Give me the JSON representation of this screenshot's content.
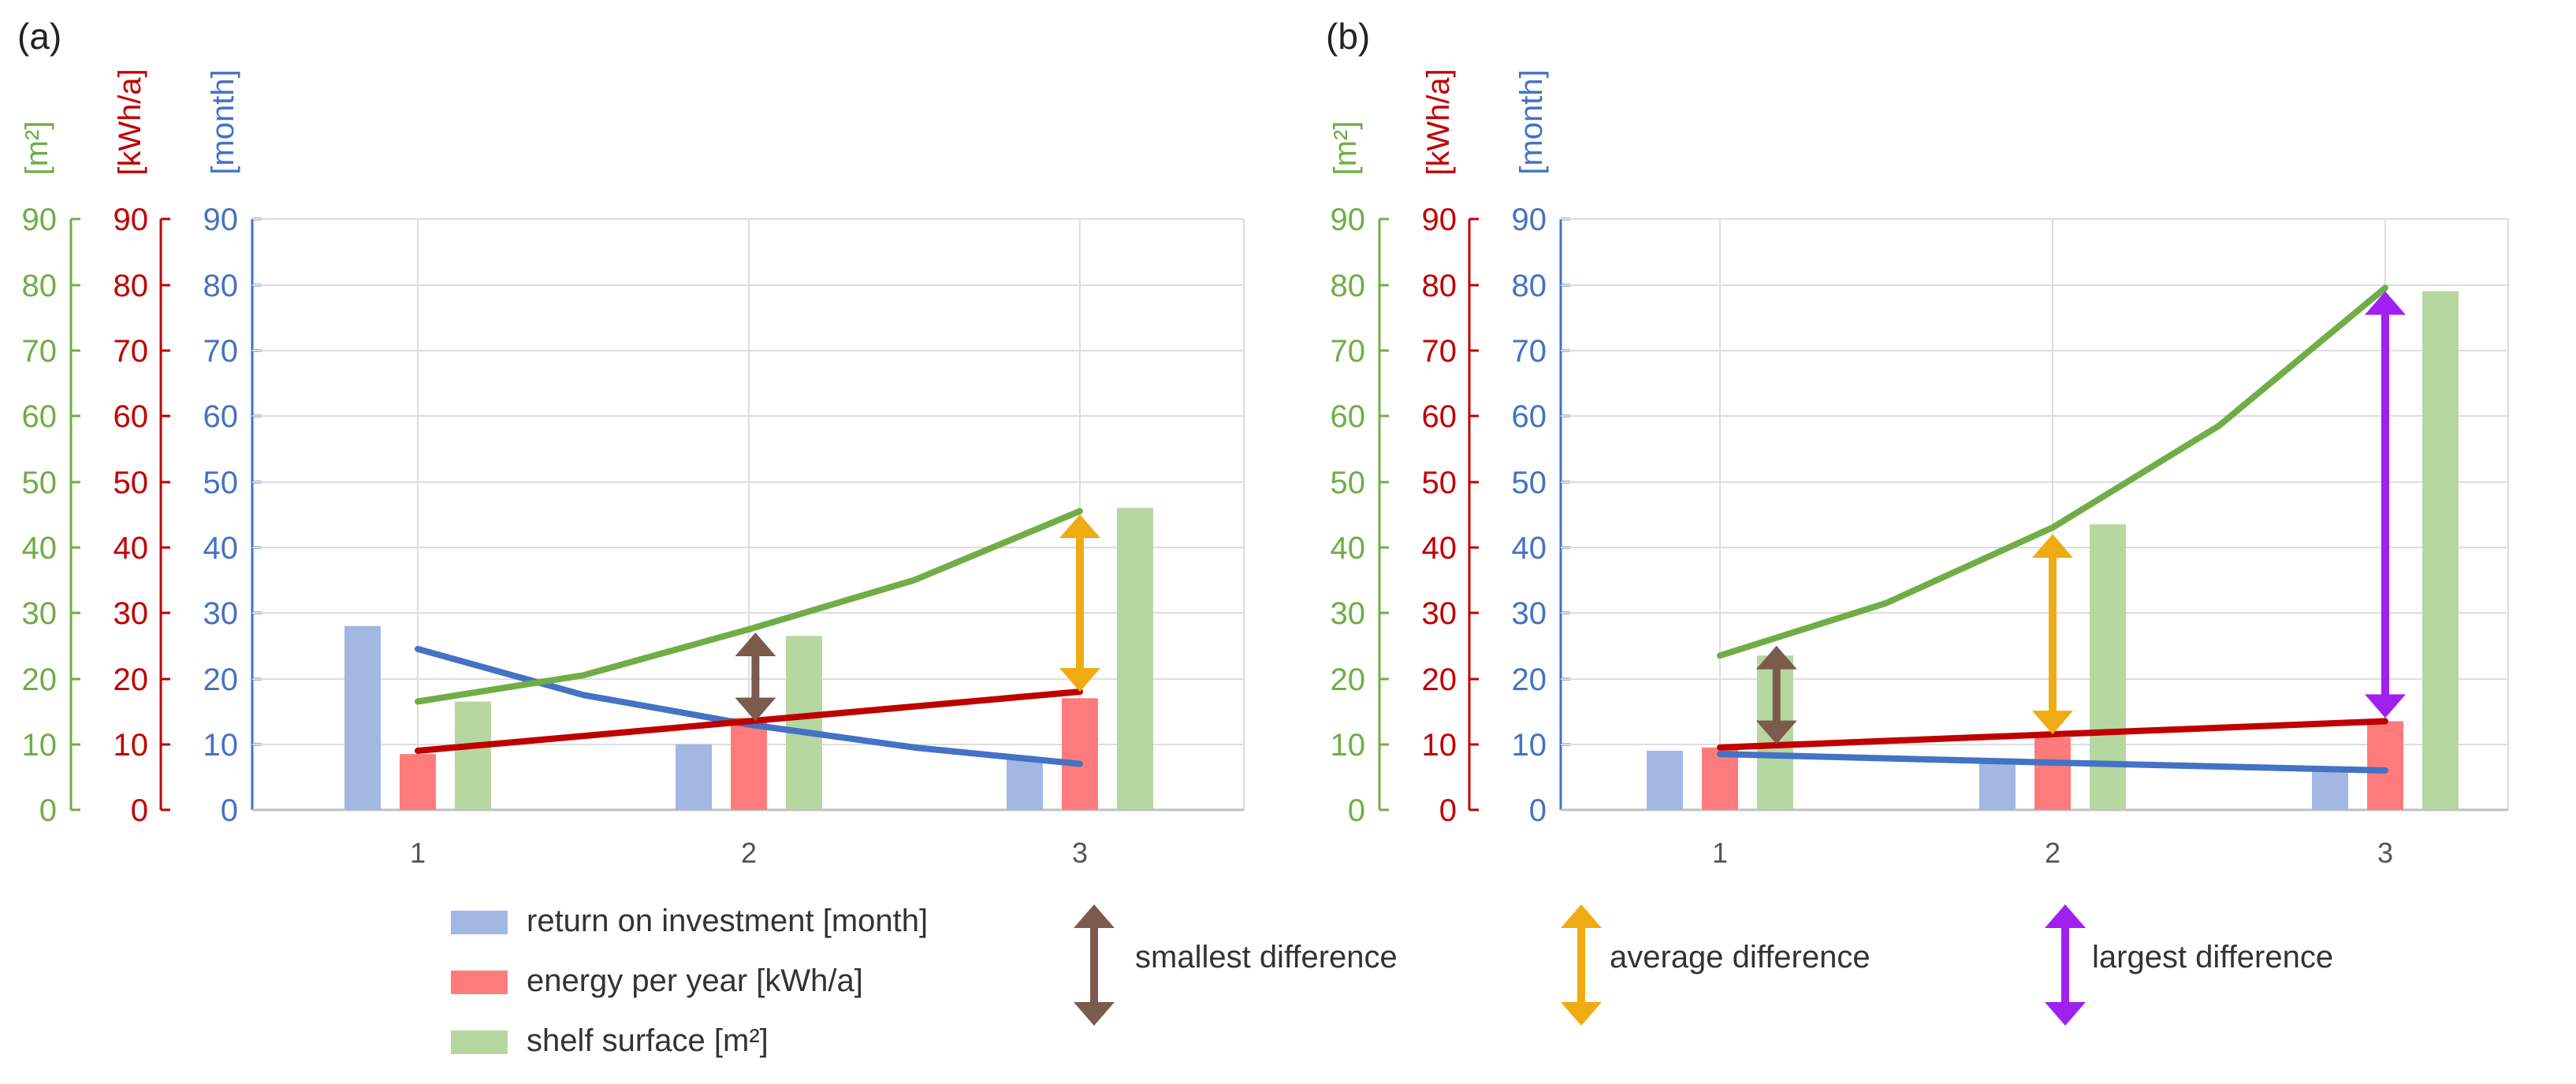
{
  "figure": {
    "panels": [
      {
        "label": "(a)",
        "axis_units": {
          "shelf": "[m²]",
          "energy": "[kWh/a]",
          "roi": "[month]"
        },
        "ticks": [
          "0",
          "10",
          "20",
          "30",
          "40",
          "50",
          "60",
          "70",
          "80",
          "90"
        ],
        "x_labels": [
          "1",
          "2",
          "3"
        ]
      },
      {
        "label": "(b)",
        "axis_units": {
          "shelf": "[m²]",
          "energy": "[kWh/a]",
          "roi": "[month]"
        },
        "ticks": [
          "0",
          "10",
          "20",
          "30",
          "40",
          "50",
          "60",
          "70",
          "80",
          "90"
        ],
        "x_labels": [
          "1",
          "2",
          "3"
        ]
      }
    ],
    "legend": {
      "roi": "return on investment [month]",
      "energy": "energy per year [kWh/a]",
      "shelf": "shelf surface [m²]",
      "smallest": "smallest difference",
      "average": "average difference",
      "largest": "largest difference"
    }
  },
  "colors": {
    "roi_bar": "#A2B8E2",
    "roi_line": "#4472C4",
    "energy_bar": "#FF7B7B",
    "energy_line": "#C00000",
    "shelf_bar": "#B6D7A0",
    "shelf_line": "#70AD47",
    "smallest": "#7B5B4C",
    "average": "#F0AB12",
    "largest": "#A020F0",
    "grid": "#DDDDDD",
    "axis_text": "#555555"
  },
  "chart_data": [
    {
      "type": "bar",
      "panel": "(a)",
      "categories": [
        "1",
        "2",
        "3"
      ],
      "ylim": [
        0,
        90
      ],
      "series": [
        {
          "name": "return on investment [month]",
          "values": [
            28,
            10,
            8
          ]
        },
        {
          "name": "energy per year [kWh/a]",
          "values": [
            8.5,
            14,
            17
          ]
        },
        {
          "name": "shelf surface [m²]",
          "values": [
            16.5,
            26.5,
            46
          ]
        }
      ],
      "trend_lines": [
        {
          "name": "return on investment [month]",
          "x": [
            1,
            1.5,
            2,
            2.5,
            3
          ],
          "y": [
            24.5,
            17.5,
            13,
            9.5,
            7
          ]
        },
        {
          "name": "energy per year [kWh/a]",
          "x": [
            1,
            2,
            3
          ],
          "y": [
            9,
            13.5,
            18
          ]
        },
        {
          "name": "shelf surface [m²]",
          "x": [
            1,
            1.5,
            2,
            2.5,
            3
          ],
          "y": [
            16.5,
            20.5,
            27.5,
            35,
            45.5
          ]
        }
      ],
      "difference_arrows": [
        {
          "kind": "smallest difference",
          "x": 2.02,
          "y_from": 13.5,
          "y_to": 27
        },
        {
          "kind": "average difference",
          "x": 3.0,
          "y_from": 18,
          "y_to": 45
        }
      ]
    },
    {
      "type": "bar",
      "panel": "(b)",
      "categories": [
        "1",
        "2",
        "3"
      ],
      "ylim": [
        0,
        90
      ],
      "series": [
        {
          "name": "return on investment [month]",
          "values": [
            9,
            7.5,
            6.5
          ]
        },
        {
          "name": "energy per year [kWh/a]",
          "values": [
            9.5,
            11,
            13.5
          ]
        },
        {
          "name": "shelf surface [m²]",
          "values": [
            23.5,
            43.5,
            79
          ]
        }
      ],
      "trend_lines": [
        {
          "name": "return on investment [month]",
          "x": [
            1,
            2,
            3
          ],
          "y": [
            8.5,
            7.2,
            6
          ]
        },
        {
          "name": "energy per year [kWh/a]",
          "x": [
            1,
            2,
            3
          ],
          "y": [
            9.5,
            11.5,
            13.5
          ]
        },
        {
          "name": "shelf surface [m²]",
          "x": [
            1,
            1.5,
            2,
            2.5,
            3
          ],
          "y": [
            23.5,
            31.5,
            43,
            58.5,
            79.5
          ]
        }
      ],
      "difference_arrows": [
        {
          "kind": "smallest difference",
          "x": 1.17,
          "y_from": 10,
          "y_to": 25
        },
        {
          "kind": "average difference",
          "x": 2.0,
          "y_from": 11.5,
          "y_to": 42
        },
        {
          "kind": "largest difference",
          "x": 3.0,
          "y_from": 14,
          "y_to": 79
        }
      ]
    }
  ]
}
